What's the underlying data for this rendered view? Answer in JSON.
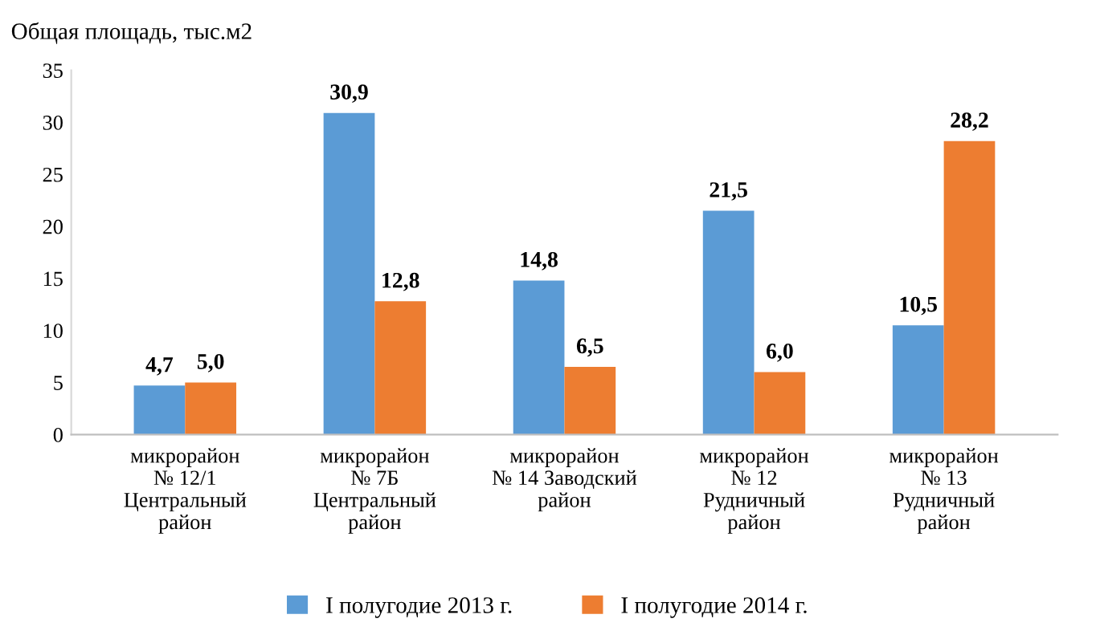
{
  "chart_data": {
    "type": "bar",
    "title": "Общая площадь, тыс.м2",
    "categories": [
      "микрорайон\n№ 12/1\nЦентральный\nрайон",
      "микрорайон\n№ 7Б\nЦентральный\nрайон",
      "микрорайон\n№ 14 Заводский\nрайон",
      "микрорайон\n№ 12\nРудничный\nрайон",
      "микрорайон\n№ 13\nРудничный\nрайон"
    ],
    "series": [
      {
        "name": "I полугодие 2013 г.",
        "color": "#5b9bd5",
        "values": [
          4.7,
          30.9,
          14.8,
          21.5,
          10.5
        ],
        "value_labels": [
          "4,7",
          "30,9",
          "14,8",
          "21,5",
          "10,5"
        ]
      },
      {
        "name": "I полугодие 2014 г.",
        "color": "#ed7d31",
        "values": [
          5.0,
          12.8,
          6.5,
          6.0,
          28.2
        ],
        "value_labels": [
          "5,0",
          "12,8",
          "6,5",
          "6,0",
          "28,2"
        ]
      }
    ],
    "ylim": [
      0,
      35
    ],
    "yticks": [
      0,
      5,
      10,
      15,
      20,
      25,
      30,
      35
    ],
    "grid": false,
    "legend": "bottom"
  }
}
